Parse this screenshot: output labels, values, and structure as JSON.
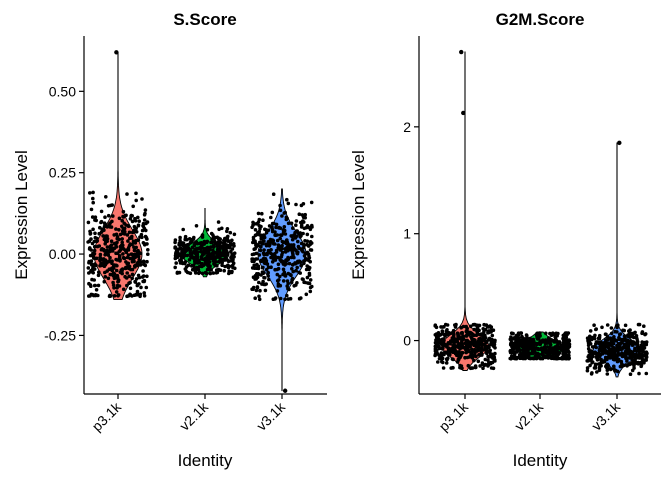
{
  "chart_data": [
    {
      "type": "violin",
      "title": "S.Score",
      "xlabel": "Identity",
      "ylabel": "Expression Level",
      "categories": [
        "p3.1k",
        "v2.1k",
        "v3.1k"
      ],
      "colors": [
        "#F8766D",
        "#00BA38",
        "#619CFF"
      ],
      "yticks": [
        -0.25,
        0.0,
        0.25,
        0.5
      ],
      "ytick_labels": [
        "-0.25",
        "0.00",
        "0.25",
        "0.50"
      ],
      "ylim": [
        -0.43,
        0.67
      ],
      "grid": false,
      "legend": "none",
      "series": [
        {
          "name": "p3.1k",
          "min": -0.14,
          "q1": -0.05,
          "median": 0.0,
          "q3": 0.05,
          "max": 0.62,
          "dense_low": -0.13,
          "dense_high": 0.19,
          "outliers": [
            0.62
          ]
        },
        {
          "name": "v2.1k",
          "min": -0.07,
          "q1": -0.02,
          "median": 0.0,
          "q3": 0.02,
          "max": 0.14,
          "dense_low": -0.06,
          "dense_high": 0.13,
          "outliers": []
        },
        {
          "name": "v3.1k",
          "min": -0.42,
          "q1": -0.05,
          "median": 0.0,
          "q3": 0.04,
          "max": 0.2,
          "dense_low": -0.14,
          "dense_high": 0.19,
          "outliers": [
            -0.42
          ]
        }
      ]
    },
    {
      "type": "violin",
      "title": "G2M.Score",
      "xlabel": "Identity",
      "ylabel": "Expression Level",
      "categories": [
        "p3.1k",
        "v2.1k",
        "v3.1k"
      ],
      "colors": [
        "#F8766D",
        "#00BA38",
        "#619CFF"
      ],
      "yticks": [
        0,
        1,
        2
      ],
      "ytick_labels": [
        "0",
        "1",
        "2"
      ],
      "ylim": [
        -0.5,
        2.85
      ],
      "grid": false,
      "legend": "none",
      "series": [
        {
          "name": "p3.1k",
          "min": -0.28,
          "q1": -0.12,
          "median": -0.05,
          "q3": 0.02,
          "max": 2.7,
          "dense_low": -0.26,
          "dense_high": 0.15,
          "outliers": [
            2.13,
            2.7
          ]
        },
        {
          "name": "v2.1k",
          "min": -0.17,
          "q1": -0.12,
          "median": -0.07,
          "q3": -0.02,
          "max": 0.08,
          "dense_low": -0.17,
          "dense_high": 0.07,
          "outliers": []
        },
        {
          "name": "v3.1k",
          "min": -0.34,
          "q1": -0.15,
          "median": -0.09,
          "q3": -0.02,
          "max": 1.85,
          "dense_low": -0.32,
          "dense_high": 0.15,
          "outliers": [
            1.85
          ]
        }
      ]
    }
  ]
}
